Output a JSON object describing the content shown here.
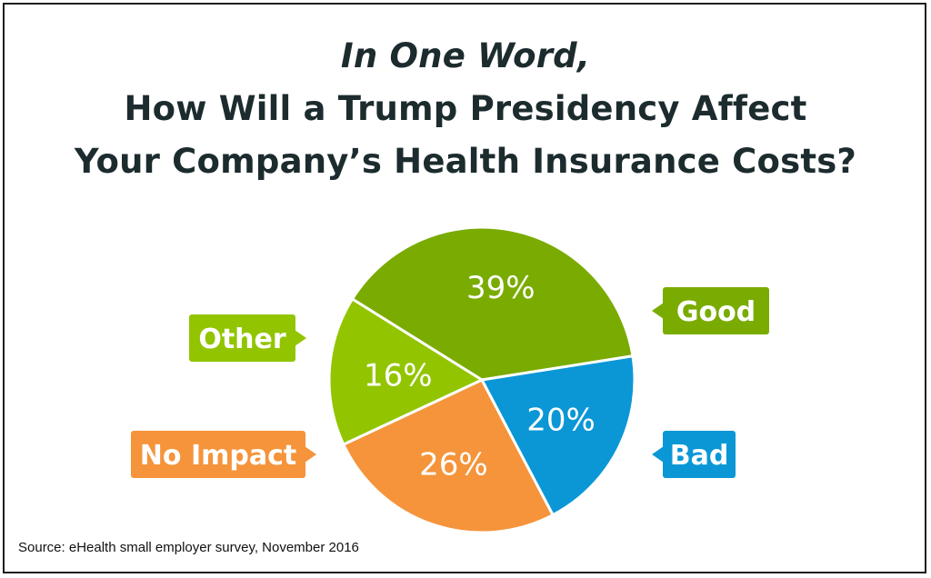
{
  "title": {
    "line1": "In One Word,",
    "line2": "How Will a Trump Presidency Affect",
    "line3": "Your Company’s Health Insurance Costs?"
  },
  "source": "Source: eHealth small employer survey, November 2016",
  "chart_data": {
    "type": "pie",
    "title": "In One Word, How Will a Trump Presidency Affect Your Company’s Health Insurance Costs?",
    "slices": [
      {
        "label": "Good",
        "value": 39,
        "display": "39%",
        "color": "#7aab00"
      },
      {
        "label": "Bad",
        "value": 20,
        "display": "20%",
        "color": "#0b97d6"
      },
      {
        "label": "No Impact",
        "value": 26,
        "display": "26%",
        "color": "#f5943a"
      },
      {
        "label": "Other",
        "value": 16,
        "display": "16%",
        "color": "#92c500"
      }
    ]
  }
}
